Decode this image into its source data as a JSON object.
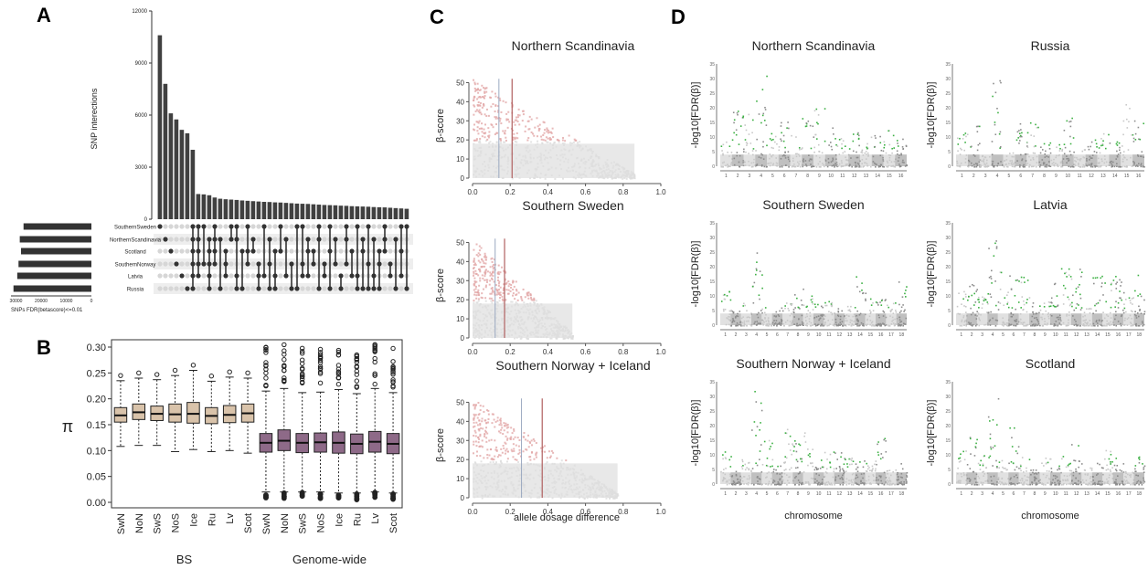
{
  "panels": {
    "A": "A",
    "B": "B",
    "C": "C",
    "D": "D"
  },
  "panelA": {
    "chart_data": {
      "type": "bar",
      "title": "",
      "ylabel": "SNP interections",
      "ylim": [
        0,
        12000
      ],
      "yticks": [
        "0",
        "3000",
        "6000",
        "9000",
        "12000"
      ],
      "values": [
        10600,
        7800,
        6100,
        5750,
        5150,
        4950,
        4000,
        1450,
        1430,
        1380,
        1250,
        1180,
        1150,
        1130,
        1110,
        1080,
        1060,
        1040,
        1020,
        1000,
        990,
        970,
        960,
        940,
        920,
        900,
        890,
        880,
        860,
        840,
        820,
        810,
        800,
        780,
        770,
        750,
        740,
        730,
        720,
        700,
        690,
        680,
        660,
        640,
        620,
        600
      ],
      "sets": [
        "SouthernSweden",
        "NorthernScandinavia",
        "Scotland",
        "SouthernNorway",
        "Latvia",
        "Russia"
      ],
      "set_sizes": [
        27000,
        28500,
        28000,
        29000,
        29500,
        31000
      ],
      "set_axis_ticks": [
        "30000",
        "20000",
        "10000",
        "0"
      ],
      "set_axis_label": "SNPs FDR(betascore)<=0.01"
    }
  },
  "panelB": {
    "chart_data": {
      "type": "box",
      "ylabel": "π",
      "ylim": [
        0,
        0.3
      ],
      "yticks": [
        "0.00",
        "0.05",
        "0.10",
        "0.15",
        "0.20",
        "0.25",
        "0.30"
      ],
      "categories": [
        "SwN",
        "NoN",
        "SwS",
        "NoS",
        "Ice",
        "Ru",
        "Lv",
        "Scot",
        "SwN",
        "NoN",
        "SwS",
        "NoS",
        "Ice",
        "Ru",
        "Lv",
        "Scot"
      ],
      "groups": [
        "BS",
        "Genome-wide"
      ],
      "colors": {
        "BS": "#d9c3aa",
        "Genome-wide": "#8e6a88"
      },
      "series": [
        {
          "name": "BS",
          "boxes": [
            {
              "min": 0.108,
              "q1": 0.155,
              "median": 0.168,
              "q3": 0.183,
              "max": 0.235
            },
            {
              "min": 0.11,
              "q1": 0.16,
              "median": 0.174,
              "q3": 0.19,
              "max": 0.24
            },
            {
              "min": 0.11,
              "q1": 0.158,
              "median": 0.171,
              "q3": 0.186,
              "max": 0.237
            },
            {
              "min": 0.098,
              "q1": 0.155,
              "median": 0.17,
              "q3": 0.19,
              "max": 0.245
            },
            {
              "min": 0.102,
              "q1": 0.153,
              "median": 0.171,
              "q3": 0.193,
              "max": 0.255
            },
            {
              "min": 0.098,
              "q1": 0.152,
              "median": 0.167,
              "q3": 0.183,
              "max": 0.234
            },
            {
              "min": 0.1,
              "q1": 0.154,
              "median": 0.169,
              "q3": 0.187,
              "max": 0.242
            },
            {
              "min": 0.095,
              "q1": 0.155,
              "median": 0.172,
              "q3": 0.19,
              "max": 0.24
            }
          ]
        },
        {
          "name": "Genome-wide",
          "boxes": [
            {
              "min": 0.02,
              "q1": 0.097,
              "median": 0.115,
              "q3": 0.133,
              "max": 0.215
            },
            {
              "min": 0.02,
              "q1": 0.1,
              "median": 0.119,
              "q3": 0.14,
              "max": 0.22
            },
            {
              "min": 0.02,
              "q1": 0.096,
              "median": 0.115,
              "q3": 0.133,
              "max": 0.212
            },
            {
              "min": 0.02,
              "q1": 0.097,
              "median": 0.116,
              "q3": 0.134,
              "max": 0.213
            },
            {
              "min": 0.018,
              "q1": 0.095,
              "median": 0.115,
              "q3": 0.136,
              "max": 0.218
            },
            {
              "min": 0.018,
              "q1": 0.094,
              "median": 0.113,
              "q3": 0.132,
              "max": 0.21
            },
            {
              "min": 0.02,
              "q1": 0.097,
              "median": 0.117,
              "q3": 0.137,
              "max": 0.22
            },
            {
              "min": 0.018,
              "q1": 0.094,
              "median": 0.113,
              "q3": 0.133,
              "max": 0.212
            }
          ]
        }
      ]
    },
    "group_labels": [
      "BS",
      "Genome-wide"
    ]
  },
  "panelC": {
    "xlabel": "allele dosage difference",
    "ylabel": "β-score",
    "xticks": [
      "0.0",
      "0.2",
      "0.4",
      "0.6",
      "0.8",
      "1.0"
    ],
    "yticks": [
      "0",
      "10",
      "20",
      "30",
      "40",
      "50"
    ],
    "chart_data": [
      {
        "type": "scatter",
        "title": "Northern Scandinavia",
        "xlim": [
          0,
          1
        ],
        "ylim": [
          0,
          55
        ],
        "vlines": [
          0.14,
          0.21
        ],
        "xmax_points": 0.86
      },
      {
        "type": "scatter",
        "title": "Southern Sweden",
        "xlim": [
          0,
          1
        ],
        "ylim": [
          0,
          55
        ],
        "vlines": [
          0.12,
          0.17
        ],
        "xmax_points": 0.53
      },
      {
        "type": "scatter",
        "title": "Southern Norway + Iceland",
        "xlim": [
          0,
          1
        ],
        "ylim": [
          0,
          55
        ],
        "vlines": [
          0.26,
          0.37
        ],
        "xmax_points": 0.77
      }
    ]
  },
  "panelD": {
    "xlabel": "chromosome",
    "ylabel": "-log10[FDR(β)]",
    "chart_data": [
      {
        "type": "scatter",
        "title": "Northern Scandinavia",
        "ylim": [
          0,
          35
        ],
        "chromosomes": [
          "1",
          "2",
          "3",
          "4",
          "5",
          "6",
          "7",
          "8",
          "9",
          "10",
          "11",
          "12",
          "13",
          "14",
          "15",
          "16"
        ]
      },
      {
        "type": "scatter",
        "title": "Russia",
        "ylim": [
          0,
          35
        ],
        "chromosomes": [
          "1",
          "2",
          "3",
          "4",
          "5",
          "6",
          "7",
          "8",
          "9",
          "10",
          "11",
          "12",
          "13",
          "14",
          "15",
          "16"
        ]
      },
      {
        "type": "scatter",
        "title": "Southern Sweden",
        "ylim": [
          0,
          35
        ],
        "chromosomes": [
          "1",
          "2",
          "3",
          "4",
          "5",
          "6",
          "7",
          "8",
          "9",
          "10",
          "11",
          "12",
          "13",
          "14",
          "15",
          "16",
          "17",
          "18"
        ]
      },
      {
        "type": "scatter",
        "title": "Latvia",
        "ylim": [
          0,
          35
        ],
        "chromosomes": [
          "1",
          "2",
          "3",
          "4",
          "5",
          "6",
          "7",
          "8",
          "9",
          "10",
          "11",
          "12",
          "13",
          "14",
          "15",
          "16",
          "17",
          "18"
        ]
      },
      {
        "type": "scatter",
        "title": "Southern Norway + Iceland",
        "ylim": [
          0,
          35
        ],
        "chromosomes": [
          "1",
          "2",
          "3",
          "4",
          "5",
          "6",
          "7",
          "8",
          "9",
          "10",
          "11",
          "12",
          "13",
          "14",
          "15",
          "16",
          "17",
          "18"
        ]
      },
      {
        "type": "scatter",
        "title": "Scotland",
        "ylim": [
          0,
          35
        ],
        "chromosomes": [
          "1",
          "2",
          "3",
          "4",
          "5",
          "6",
          "7",
          "8",
          "9",
          "10",
          "11",
          "12",
          "13",
          "14",
          "15",
          "16",
          "17",
          "18"
        ]
      }
    ],
    "colors": {
      "highlight": "#3cb043",
      "dark": "#8c8c8c",
      "light": "#c8c8c8"
    }
  }
}
